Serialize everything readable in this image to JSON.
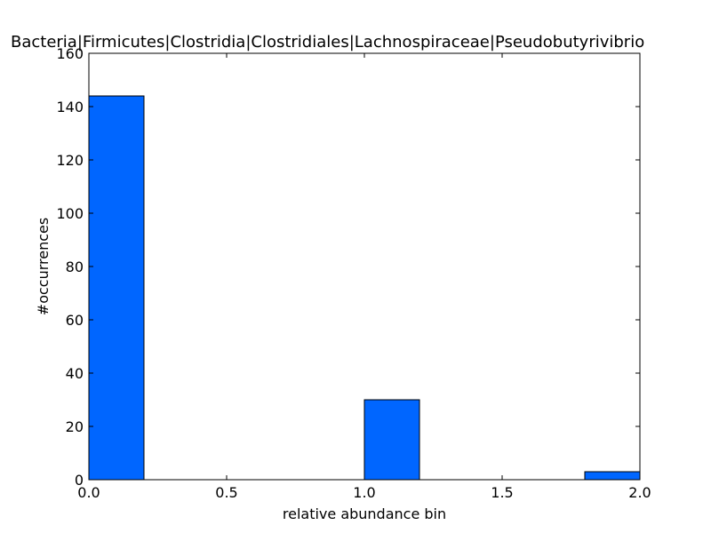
{
  "chart_data": {
    "type": "bar",
    "title": "Bacteria|Firmicutes|Clostridia|Clostridiales|Lachnospiraceae|Pseudobutyrivibrio",
    "xlabel": "relative abundance bin",
    "ylabel": "#occurrences",
    "xlim": [
      0.0,
      2.0
    ],
    "ylim": [
      0,
      160
    ],
    "xticks": [
      "0.0",
      "0.5",
      "1.0",
      "1.5",
      "2.0"
    ],
    "yticks": [
      "0",
      "20",
      "40",
      "60",
      "80",
      "100",
      "120",
      "140",
      "160"
    ],
    "bin_edges": [
      0.0,
      0.2,
      0.4,
      0.6,
      0.8,
      1.0,
      1.2,
      1.4,
      1.6,
      1.8,
      2.0
    ],
    "values": [
      144,
      0,
      0,
      0,
      0,
      30,
      0,
      0,
      0,
      3
    ],
    "grid": false,
    "bar_color": "#0066ff",
    "edge_color": "#000000"
  }
}
